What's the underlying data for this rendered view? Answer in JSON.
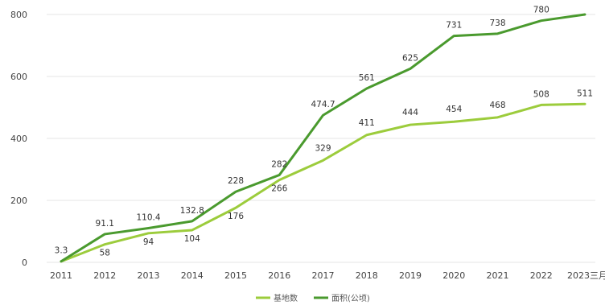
{
  "chart_data": {
    "type": "line",
    "categories": [
      "2011",
      "2012",
      "2013",
      "2014",
      "2015",
      "2016",
      "2017",
      "2018",
      "2019",
      "2020",
      "2021",
      "2022",
      "2023三月"
    ],
    "ylim": [
      0,
      800
    ],
    "yticks": [
      0,
      200,
      400,
      600,
      800
    ],
    "grid": true,
    "legend_position": "bottom",
    "series": [
      {
        "name": "基地数",
        "color": "#9ccc3c",
        "values": [
          3,
          58,
          94,
          104,
          176,
          266,
          329,
          411,
          444,
          454,
          468,
          508,
          511
        ],
        "labels": [
          "",
          "58",
          "94",
          "104",
          "176",
          "266",
          "329",
          "411",
          "444",
          "454",
          "468",
          "508",
          "511"
        ]
      },
      {
        "name": "面积(公顷)",
        "color": "#4a9a2e",
        "values": [
          3.3,
          91.1,
          110.4,
          132.8,
          228,
          282,
          474.7,
          561,
          625,
          731,
          738,
          780,
          800
        ],
        "labels": [
          "3.3",
          "91.1",
          "110.4",
          "132.8",
          "228",
          "282",
          "474.7",
          "561",
          "625",
          "731",
          "738",
          "780",
          ""
        ]
      }
    ]
  }
}
